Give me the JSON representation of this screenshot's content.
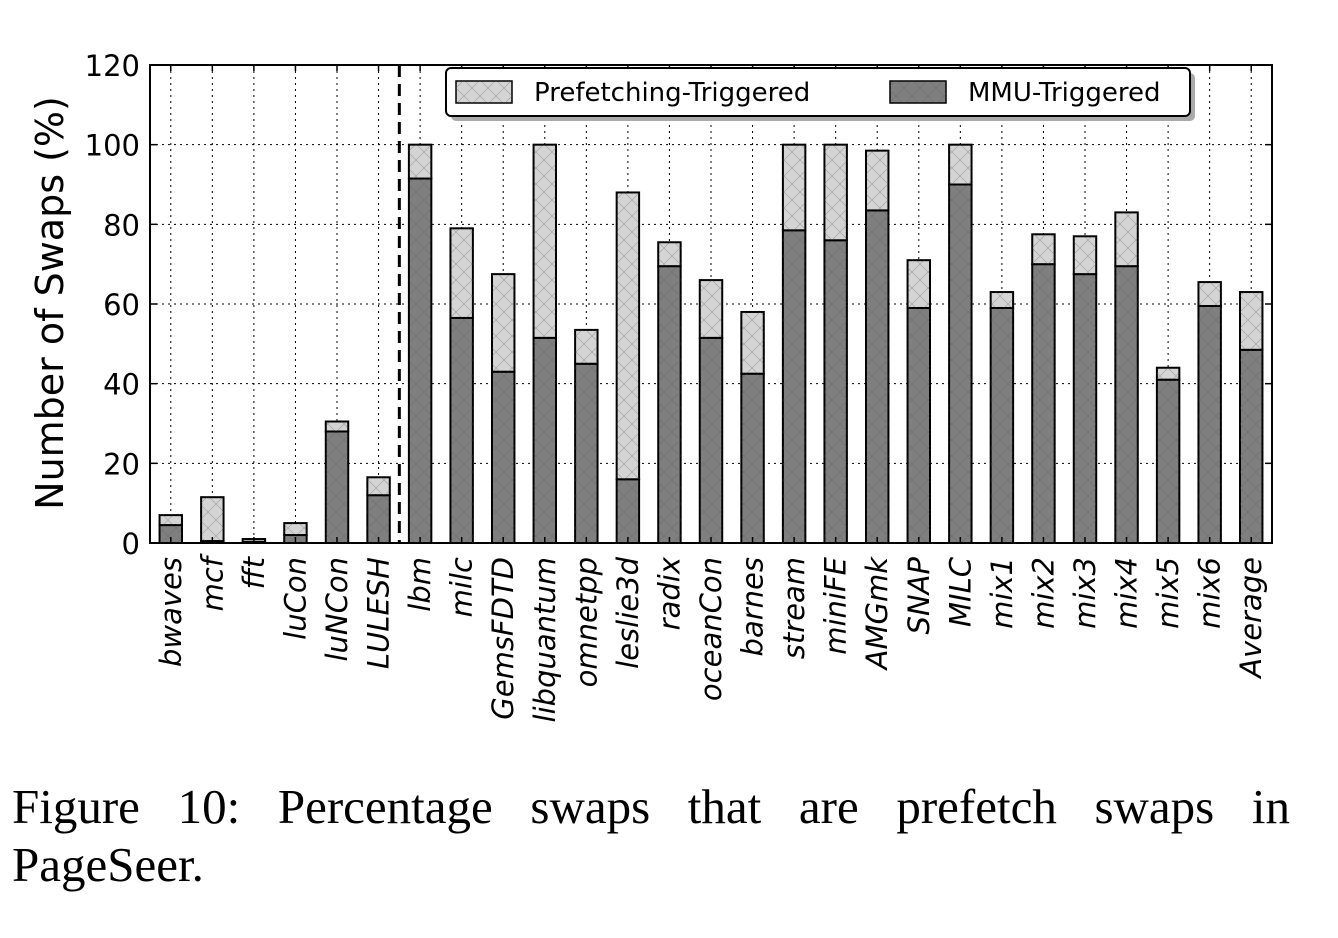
{
  "chart_data": {
    "type": "bar",
    "stacked": true,
    "ylabel": "Number of Swaps (%)",
    "xlabel": "",
    "ylim": [
      0,
      120
    ],
    "yticks": [
      0,
      20,
      40,
      60,
      80,
      100,
      120
    ],
    "grid": true,
    "legend_position": "top-right",
    "categories": [
      "bwaves",
      "mcf",
      "fft",
      "luCon",
      "luNCon",
      "LULESH",
      "lbm",
      "milc",
      "GemsFDTD",
      "libquantum",
      "omnetpp",
      "leslie3d",
      "radix",
      "oceanCon",
      "barnes",
      "stream",
      "miniFE",
      "AMGmk",
      "SNAP",
      "MILC",
      "mix1",
      "mix2",
      "mix3",
      "mix4",
      "mix5",
      "mix6",
      "Average"
    ],
    "divider_after_index": 5,
    "series": [
      {
        "name": "MMU-Triggered",
        "color": "#7f7f7f",
        "values": [
          4.5,
          0.5,
          0.3,
          2,
          28,
          12,
          91.5,
          56.5,
          43,
          51.5,
          45,
          16,
          69.5,
          51.5,
          42.5,
          78.5,
          76,
          83.5,
          59,
          90,
          59,
          70,
          67.5,
          69.5,
          41,
          59.5,
          48.5
        ]
      },
      {
        "name": "Prefetching-Triggered",
        "color": "#d4d4d4",
        "values": [
          2.5,
          11,
          0.7,
          3,
          2.5,
          4.5,
          8.5,
          22.5,
          24.5,
          48.5,
          8.5,
          72,
          6,
          14.5,
          15.5,
          21.5,
          24,
          15,
          12,
          10,
          4,
          7.5,
          9.5,
          13.5,
          3,
          6,
          14.5
        ]
      }
    ]
  },
  "caption": "Figure 10: Percentage swaps that are prefetch swaps in PageSeer."
}
